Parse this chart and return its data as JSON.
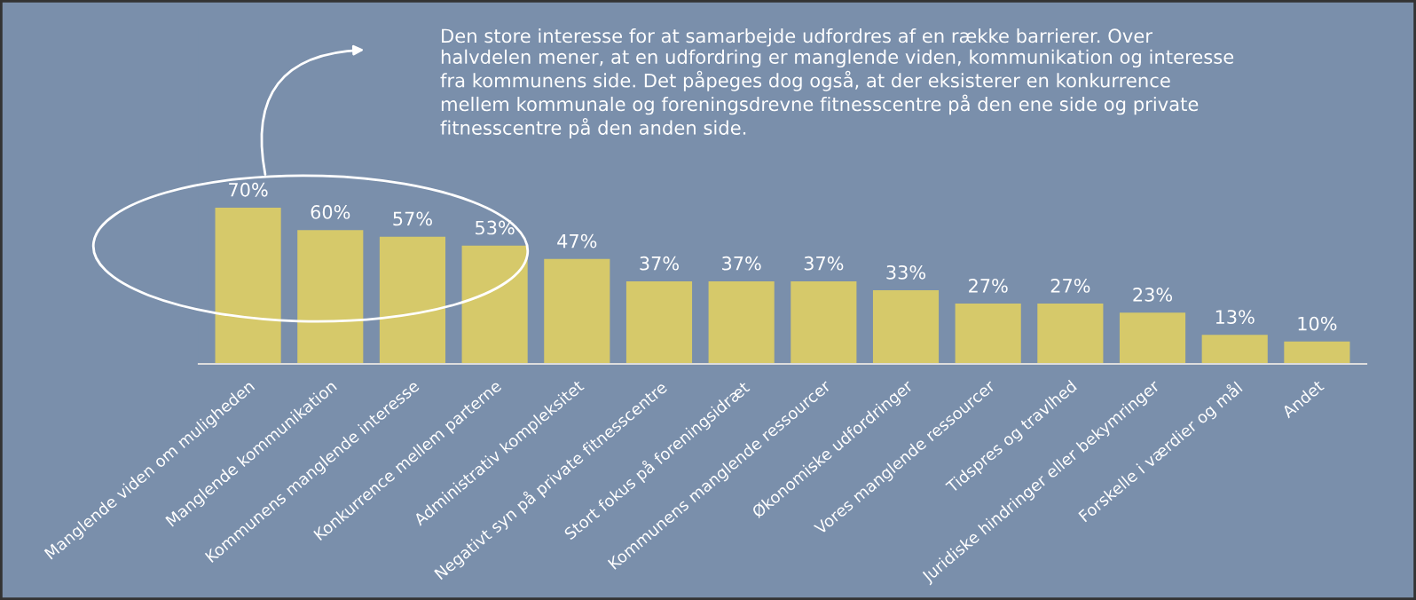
{
  "chart_data": {
    "type": "bar",
    "categories": [
      "Manglende viden om muligheden",
      "Manglende kommunikation",
      "Kommunens manglende interesse",
      "Konkurrence mellem parterne",
      "Administrativ kompleksitet",
      "Negativt syn på private fitnesscentre",
      "Stort fokus på foreningsidræt",
      "Kommunens manglende ressourcer",
      "Økonomiske udfordringer",
      "Vores manglende ressourcer",
      "Tidspres og travlhed",
      "Juridiske hindringer eller bekymringer",
      "Forskelle i værdier og mål",
      "Andet"
    ],
    "values": [
      70,
      60,
      57,
      53,
      47,
      37,
      37,
      37,
      33,
      27,
      27,
      23,
      13,
      10
    ],
    "value_labels": [
      "70%",
      "60%",
      "57%",
      "53%",
      "47%",
      "37%",
      "37%",
      "37%",
      "33%",
      "27%",
      "27%",
      "23%",
      "13%",
      "10%"
    ],
    "color": "#d6c96a",
    "annotations": [
      "Den store interesse for at samarbejde udfordres af en række barrierer. Over halvdelen mener, at en udfordring er manglende viden, kommunikation og interesse fra kommunens side. Det påpeges dog også, at der eksisterer en konkurrence mellem kommunale og foreningsdrevne fitnesscentre på den ene side og private fitnesscentre på den anden side."
    ]
  }
}
